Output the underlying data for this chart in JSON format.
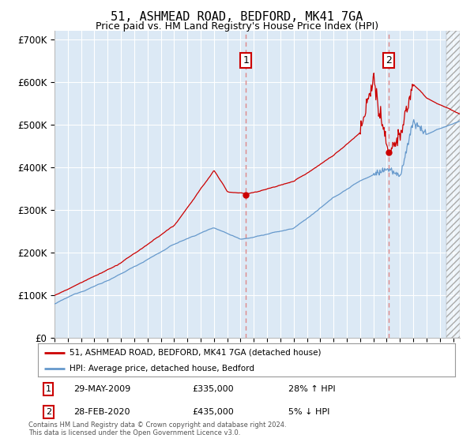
{
  "title": "51, ASHMEAD ROAD, BEDFORD, MK41 7GA",
  "subtitle": "Price paid vs. HM Land Registry's House Price Index (HPI)",
  "ylim": [
    0,
    720000
  ],
  "yticks": [
    0,
    100000,
    200000,
    300000,
    400000,
    500000,
    600000,
    700000
  ],
  "ytick_labels": [
    "£0",
    "£100K",
    "£200K",
    "£300K",
    "£400K",
    "£500K",
    "£600K",
    "£700K"
  ],
  "background_color": "#ffffff",
  "plot_bg_color": "#dce9f5",
  "grid_color": "#ffffff",
  "title_fontsize": 11,
  "subtitle_fontsize": 9,
  "legend_label_red": "51, ASHMEAD ROAD, BEDFORD, MK41 7GA (detached house)",
  "legend_label_blue": "HPI: Average price, detached house, Bedford",
  "annotation1_label": "1",
  "annotation1_date": "29-MAY-2009",
  "annotation1_price": "£335,000",
  "annotation1_hpi": "28% ↑ HPI",
  "annotation2_label": "2",
  "annotation2_date": "28-FEB-2020",
  "annotation2_price": "£435,000",
  "annotation2_hpi": "5% ↓ HPI",
  "footer": "Contains HM Land Registry data © Crown copyright and database right 2024.\nThis data is licensed under the Open Government Licence v3.0.",
  "red_color": "#cc0000",
  "blue_color": "#6699cc",
  "vline_color": "#dd8888",
  "sale1_x": 2009.41,
  "sale1_y": 335000,
  "sale2_x": 2020.17,
  "sale2_y": 435000,
  "xmin": 1995,
  "xmax": 2025.5,
  "hatch_start": 2024.5
}
